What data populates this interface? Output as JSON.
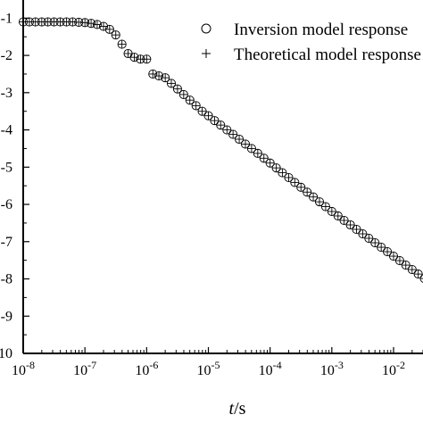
{
  "chart_data": {
    "type": "scatter",
    "x_scale": "log",
    "y_scale": "linear",
    "xlim": [
      1e-08,
      0.03
    ],
    "ylim": [
      -10,
      -0.8
    ],
    "x_ticks": [
      1e-08,
      1e-07,
      1e-06,
      1e-05,
      0.0001,
      0.001,
      0.01
    ],
    "x_tick_labels": [
      {
        "base": "10",
        "exp": "-8"
      },
      {
        "base": "10",
        "exp": "-7"
      },
      {
        "base": "10",
        "exp": "-6"
      },
      {
        "base": "10",
        "exp": "-5"
      },
      {
        "base": "10",
        "exp": "-4"
      },
      {
        "base": "10",
        "exp": "-3"
      },
      {
        "base": "10",
        "exp": "-2"
      }
    ],
    "y_ticks": [
      -1,
      -2,
      -3,
      -4,
      -5,
      -6,
      -7,
      -8,
      -9,
      -10
    ],
    "y_tick_labels": [
      "-1",
      "-2",
      "-3",
      "-4",
      "-5",
      "-6",
      "-7",
      "-8",
      "-9",
      "-10"
    ],
    "xlabel_italic": "t",
    "xlabel_rest": "/s",
    "ylabel": "",
    "grid": false,
    "legend_position": "top-right",
    "series": [
      {
        "name": "Inversion model response",
        "marker": "circle"
      },
      {
        "name": "Theoretical model response",
        "marker": "plus"
      }
    ],
    "x": [
      1e-08,
      1.26e-08,
      1.58e-08,
      2e-08,
      2.51e-08,
      3.16e-08,
      3.98e-08,
      5.01e-08,
      6.31e-08,
      7.94e-08,
      1e-07,
      1.26e-07,
      1.58e-07,
      2e-07,
      2.51e-07,
      3.16e-07,
      3.98e-07,
      5.01e-07,
      6.31e-07,
      7.94e-07,
      1e-06,
      1.26e-06,
      1.58e-06,
      2e-06,
      2.51e-06,
      3.16e-06,
      3.98e-06,
      5.01e-06,
      6.31e-06,
      7.94e-06,
      1e-05,
      1.26e-05,
      1.58e-05,
      2e-05,
      2.51e-05,
      3.16e-05,
      3.98e-05,
      5.01e-05,
      6.31e-05,
      7.94e-05,
      0.0001,
      0.000126,
      0.000158,
      0.0002,
      0.000251,
      0.000316,
      0.000398,
      0.000501,
      0.000631,
      0.000794,
      0.001,
      0.00126,
      0.00158,
      0.002,
      0.00251,
      0.00316,
      0.00398,
      0.00501,
      0.00631,
      0.00794,
      0.01,
      0.0126,
      0.0158,
      0.02,
      0.0251,
      0.0316
    ],
    "y": [
      -1.1,
      -1.1,
      -1.1,
      -1.1,
      -1.1,
      -1.1,
      -1.1,
      -1.1,
      -1.1,
      -1.11,
      -1.12,
      -1.14,
      -1.17,
      -1.22,
      -1.3,
      -1.45,
      -1.7,
      -1.95,
      -2.05,
      -2.1,
      -2.1,
      -2.5,
      -2.55,
      -2.6,
      -2.75,
      -2.9,
      -3.05,
      -3.2,
      -3.35,
      -3.5,
      -3.62,
      -3.75,
      -3.87,
      -4.0,
      -4.12,
      -4.25,
      -4.38,
      -4.5,
      -4.63,
      -4.76,
      -4.89,
      -5.02,
      -5.15,
      -5.28,
      -5.41,
      -5.54,
      -5.67,
      -5.8,
      -5.93,
      -6.06,
      -6.19,
      -6.31,
      -6.43,
      -6.55,
      -6.67,
      -6.79,
      -6.91,
      -7.03,
      -7.15,
      -7.27,
      -7.39,
      -7.51,
      -7.63,
      -7.75,
      -7.87,
      -7.99
    ]
  }
}
